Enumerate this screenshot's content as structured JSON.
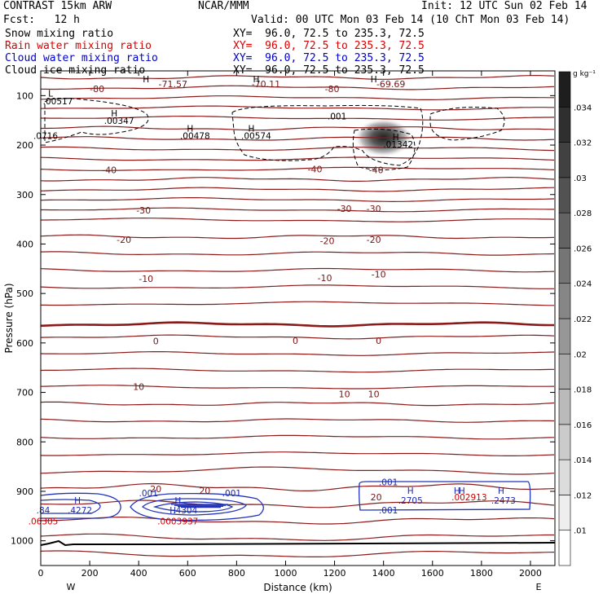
{
  "header": {
    "model": "CONTRAST 15km ARW",
    "org": "NCAR/MMM",
    "init": "Init: 12 UTC Sun 02 Feb 14",
    "fcst": "Fcst:   12 h",
    "valid": "Valid: 00 UTC Mon 03 Feb 14 (10 ChT Mon 03 Feb 14)",
    "fields": [
      {
        "name": "Snow mixing ratio",
        "xy": "XY=  96.0, 72.5 to 235.3, 72.5",
        "color": "#000000"
      },
      {
        "name": "Rain water mixing ratio",
        "xy": "XY=  96.0, 72.5 to 235.3, 72.5",
        "color": "#dd0000"
      },
      {
        "name": "Cloud water mixing ratio",
        "xy": "XY=  96.0, 72.5 to 235.3, 72.5",
        "color": "#0000cc"
      },
      {
        "name": "Cloud ice mixing ratio",
        "xy": "XY=  96.0, 72.5 to 235.3, 72.5",
        "color": "#000000"
      }
    ]
  },
  "chart_data": {
    "type": "heatmap",
    "description_fields": [
      "Snow mixing ratio (shaded)",
      "Temperature contours",
      "Cloud water",
      "Cloud ice"
    ],
    "xlabel": "Distance (km)",
    "ylabel": "Pressure (hPa)",
    "xlim": [
      0,
      2100
    ],
    "ylim": [
      1050,
      50
    ],
    "x_ticks": [
      0,
      200,
      400,
      600,
      800,
      1000,
      1200,
      1400,
      1600,
      1800,
      2000
    ],
    "y_ticks": [
      100,
      200,
      300,
      400,
      500,
      600,
      700,
      800,
      900,
      1000
    ],
    "x_ends": {
      "left": "W",
      "right": "E"
    },
    "colorbar": {
      "unit": "g kg⁻¹",
      "ticks": [
        ".01",
        ".012",
        ".014",
        ".016",
        ".018",
        ".02",
        ".022",
        ".024",
        ".026",
        ".028",
        ".03",
        ".032",
        ".034"
      ]
    },
    "snow_maximum": {
      "x": 1400,
      "p": 185,
      "value": 0.034
    },
    "temperature_labels": [
      {
        "text": "-80",
        "x": 230,
        "p": 88
      },
      {
        "text": "-80",
        "x": 1190,
        "p": 88
      },
      {
        "text": "-71.57",
        "x": 540,
        "p": 78
      },
      {
        "text": "-70.11",
        "x": 920,
        "p": 78
      },
      {
        "text": "-69.69",
        "x": 1430,
        "p": 78
      },
      {
        "text": "-40",
        "x": 280,
        "p": 252
      },
      {
        "text": "-40",
        "x": 1120,
        "p": 250
      },
      {
        "text": "-40",
        "x": 1370,
        "p": 252
      },
      {
        "text": "-30",
        "x": 420,
        "p": 333
      },
      {
        "text": "-30",
        "x": 1240,
        "p": 330
      },
      {
        "text": "-30",
        "x": 1360,
        "p": 330
      },
      {
        "text": "-20",
        "x": 340,
        "p": 393
      },
      {
        "text": "-20",
        "x": 1170,
        "p": 395
      },
      {
        "text": "-20",
        "x": 1360,
        "p": 393
      },
      {
        "text": "-10",
        "x": 430,
        "p": 472
      },
      {
        "text": "-10",
        "x": 1160,
        "p": 470
      },
      {
        "text": "-10",
        "x": 1380,
        "p": 463
      },
      {
        "text": "0",
        "x": 470,
        "p": 598
      },
      {
        "text": "0",
        "x": 1040,
        "p": 597
      },
      {
        "text": "0",
        "x": 1380,
        "p": 597
      },
      {
        "text": "10",
        "x": 400,
        "p": 690
      },
      {
        "text": "10",
        "x": 1240,
        "p": 705
      },
      {
        "text": "10",
        "x": 1360,
        "p": 705
      },
      {
        "text": "20",
        "x": 470,
        "p": 897
      },
      {
        "text": "20",
        "x": 670,
        "p": 900
      },
      {
        "text": "20",
        "x": 1370,
        "p": 913
      }
    ],
    "cloud_ice_labels": [
      {
        "text": "H",
        "x": 430,
        "p": 68
      },
      {
        "text": "H",
        "x": 880,
        "p": 68
      },
      {
        "text": "H",
        "x": 1360,
        "p": 68
      },
      {
        "text": "L",
        "x": 40,
        "p": 97
      },
      {
        "text": ".00517",
        "x": 70,
        "p": 113
      },
      {
        "text": ".001",
        "x": 1210,
        "p": 143
      },
      {
        "text": "H",
        "x": 300,
        "p": 137
      },
      {
        "text": ".00347",
        "x": 320,
        "p": 152
      },
      {
        "text": "H",
        "x": 610,
        "p": 168
      },
      {
        "text": ".00478",
        "x": 630,
        "p": 183
      },
      {
        "text": "H",
        "x": 860,
        "p": 168
      },
      {
        "text": ".00574",
        "x": 880,
        "p": 183
      },
      {
        "text": "H",
        "x": 1450,
        "p": 185
      },
      {
        "text": ".01342",
        "x": 1460,
        "p": 200
      },
      {
        "text": ".0716",
        "x": 20,
        "p": 183
      }
    ],
    "cloud_water_labels": [
      {
        "text": ".001",
        "x": 1420,
        "p": 883
      },
      {
        "text": ".001",
        "x": 1420,
        "p": 940
      },
      {
        "text": "H",
        "x": 1510,
        "p": 900
      },
      {
        "text": ".2705",
        "x": 1510,
        "p": 920
      },
      {
        "text": "H",
        "x": 1700,
        "p": 900
      },
      {
        "text": "H",
        "x": 1720,
        "p": 900
      },
      {
        "text": "H",
        "x": 1880,
        "p": 900
      },
      {
        "text": ".2473",
        "x": 1890,
        "p": 920
      },
      {
        "text": ".001",
        "x": 440,
        "p": 905
      },
      {
        "text": ".001",
        "x": 780,
        "p": 905
      },
      {
        "text": "H",
        "x": 560,
        "p": 920
      },
      {
        "text": "H",
        "x": 540,
        "p": 940
      },
      {
        "text": ".4304",
        "x": 590,
        "p": 940
      },
      {
        "text": "H",
        "x": 150,
        "p": 920
      },
      {
        "text": ".4272",
        "x": 160,
        "p": 940
      },
      {
        "text": ".84",
        "x": 10,
        "p": 940
      }
    ],
    "rain_labels": [
      {
        "text": ".0003937",
        "x": 560,
        "p": 962
      },
      {
        "text": ".06305",
        "x": 10,
        "p": 962
      },
      {
        "text": ".002913",
        "x": 1750,
        "p": 913
      }
    ]
  }
}
